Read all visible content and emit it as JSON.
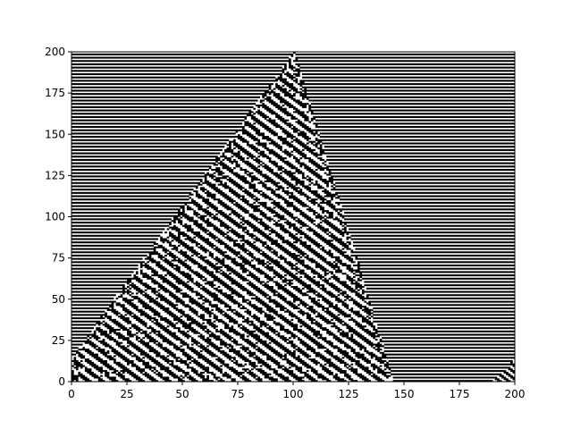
{
  "chart_data": {
    "type": "heatmap",
    "title": "",
    "xlabel": "",
    "ylabel": "",
    "xlim": [
      0,
      200
    ],
    "ylim": [
      0,
      200
    ],
    "colormap": "binary",
    "grid": false,
    "x_ticks": [
      0,
      25,
      50,
      75,
      100,
      125,
      150,
      175,
      200
    ],
    "y_ticks": [
      0,
      25,
      50,
      75,
      100,
      125,
      150,
      175,
      200
    ],
    "x_tick_labels": [
      "0",
      "25",
      "50",
      "75",
      "100",
      "125",
      "150",
      "175",
      "200"
    ],
    "y_tick_labels": [
      "0",
      "25",
      "50",
      "75",
      "100",
      "125",
      "150",
      "175",
      "200"
    ],
    "description_values": {
      "background_pattern": "horizontal stripes alternating every row",
      "triangle_left_edge": [
        [
          0,
          15
        ],
        [
          100,
          200
        ]
      ],
      "triangle_right_edge": [
        [
          100,
          200
        ],
        [
          145,
          0
        ]
      ],
      "small_triangle_right": [
        [
          190,
          0
        ],
        [
          200,
          14
        ]
      ]
    },
    "colors": {
      "on": "#000000",
      "off": "#ffffff"
    }
  }
}
